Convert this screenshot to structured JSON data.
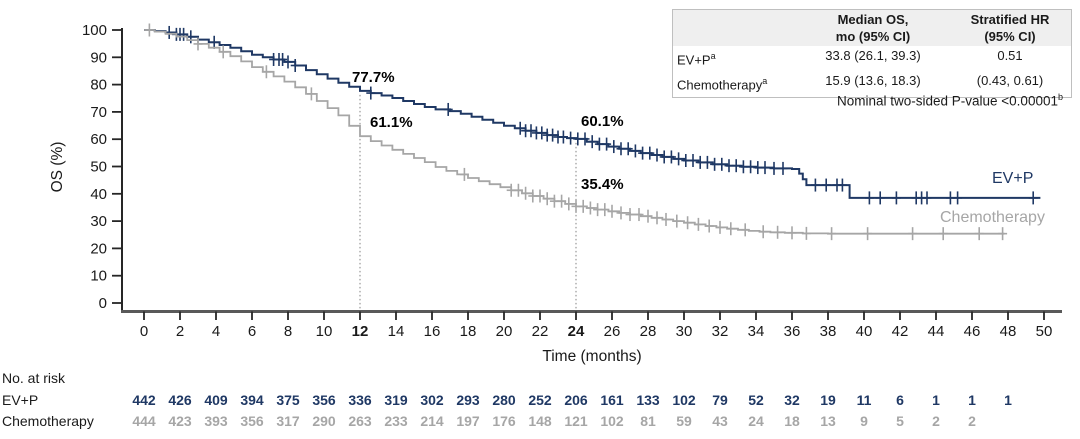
{
  "colors": {
    "evp": "#1f3864",
    "chemo": "#a6a6a6",
    "y_axis": "#262626",
    "x_axis": "#595959",
    "tick": "#262626",
    "dotted": "#808080",
    "text": "#1a1a1a",
    "table_border": "#bfbfbf",
    "table_header_bg": "#efefef"
  },
  "chart_data": {
    "type": "line",
    "subtype": "kaplan-meier-step",
    "title": "",
    "xlabel": "Time (months)",
    "ylabel": "OS (%)",
    "xlim": [
      0,
      50
    ],
    "ylim": [
      0,
      100
    ],
    "x_ticks": [
      0,
      2,
      4,
      6,
      8,
      10,
      12,
      14,
      16,
      18,
      20,
      22,
      24,
      26,
      28,
      30,
      32,
      34,
      36,
      38,
      40,
      42,
      44,
      46,
      48,
      50
    ],
    "bold_x_ticks": [
      12,
      24
    ],
    "y_ticks": [
      0,
      10,
      20,
      30,
      40,
      50,
      60,
      70,
      80,
      90,
      100
    ],
    "grid": false,
    "legend_position": "right-of-curves",
    "reference_lines": [
      {
        "x": 12,
        "top_pct": 77.7
      },
      {
        "x": 24,
        "top_pct": 60.1
      }
    ],
    "annotations": [
      {
        "text": "77.7%",
        "t": 12,
        "pct": 77.7,
        "series": "EV+P"
      },
      {
        "text": "61.1%",
        "t": 12,
        "pct": 61.1,
        "series": "Chemotherapy"
      },
      {
        "text": "60.1%",
        "t": 24,
        "pct": 60.1,
        "series": "EV+P"
      },
      {
        "text": "35.4%",
        "t": 24,
        "pct": 35.4,
        "series": "Chemotherapy"
      }
    ],
    "series": [
      {
        "name": "EV+P",
        "label": "EV+P",
        "color": "#1f3864",
        "points": [
          [
            0,
            100
          ],
          [
            0.6,
            99.6
          ],
          [
            1.2,
            99.1
          ],
          [
            1.8,
            98.4
          ],
          [
            2.4,
            97.5
          ],
          [
            3.0,
            96.5
          ],
          [
            3.6,
            95.5
          ],
          [
            4.2,
            94.5
          ],
          [
            4.8,
            93.5
          ],
          [
            5.4,
            92.2
          ],
          [
            6.0,
            90.9
          ],
          [
            6.6,
            90.0
          ],
          [
            7.2,
            89.2
          ],
          [
            7.8,
            88.3
          ],
          [
            8.4,
            87.0
          ],
          [
            9.0,
            85.3
          ],
          [
            9.6,
            83.8
          ],
          [
            10.2,
            82.2
          ],
          [
            10.8,
            80.7
          ],
          [
            11.4,
            79.2
          ],
          [
            12.0,
            77.7
          ],
          [
            12.6,
            76.9
          ],
          [
            13.2,
            76.0
          ],
          [
            13.8,
            75.1
          ],
          [
            14.4,
            74.0
          ],
          [
            15.0,
            72.9
          ],
          [
            15.6,
            71.8
          ],
          [
            16.2,
            70.9
          ],
          [
            17.0,
            70.3
          ],
          [
            17.6,
            69.3
          ],
          [
            18.2,
            68.2
          ],
          [
            18.8,
            67.1
          ],
          [
            19.4,
            66.0
          ],
          [
            20.0,
            64.9
          ],
          [
            20.6,
            64.0
          ],
          [
            21.2,
            63.1
          ],
          [
            21.8,
            62.3
          ],
          [
            22.4,
            61.5
          ],
          [
            23.0,
            60.8
          ],
          [
            23.5,
            60.4
          ],
          [
            24.0,
            60.1
          ],
          [
            24.6,
            59.1
          ],
          [
            25.2,
            58.2
          ],
          [
            25.8,
            57.3
          ],
          [
            26.4,
            56.5
          ],
          [
            27.0,
            55.7
          ],
          [
            27.6,
            54.9
          ],
          [
            28.2,
            54.2
          ],
          [
            28.8,
            53.5
          ],
          [
            29.4,
            52.8
          ],
          [
            30.0,
            52.2
          ],
          [
            30.8,
            51.5
          ],
          [
            31.6,
            50.8
          ],
          [
            32.4,
            50.3
          ],
          [
            33.2,
            49.9
          ],
          [
            34.0,
            49.6
          ],
          [
            35.0,
            49.3
          ],
          [
            36.0,
            49.1
          ],
          [
            36.4,
            47.4
          ],
          [
            36.6,
            45.3
          ],
          [
            36.8,
            43.2
          ],
          [
            39.2,
            38.5
          ],
          [
            49.8,
            38.5
          ]
        ],
        "censor_times": [
          1.4,
          1.8,
          2.0,
          2.2,
          2.6,
          3.9,
          7.2,
          7.5,
          7.7,
          8.0,
          8.4,
          12.6,
          16.9,
          20.9,
          21.2,
          21.5,
          21.8,
          22.1,
          22.4,
          22.7,
          23.0,
          23.3,
          23.7,
          24.1,
          24.5,
          24.9,
          25.3,
          25.7,
          26.1,
          26.5,
          26.9,
          27.3,
          27.7,
          28.1,
          28.5,
          28.9,
          29.3,
          29.7,
          30.1,
          30.5,
          30.9,
          31.3,
          31.7,
          32.1,
          32.5,
          32.9,
          33.3,
          33.7,
          34.1,
          34.5,
          35.0,
          35.5,
          37.3,
          37.9,
          38.5,
          38.8,
          40.3,
          40.9,
          41.8,
          42.9,
          43.2,
          43.5,
          44.8,
          45.2,
          49.4
        ]
      },
      {
        "name": "Chemotherapy",
        "label": "Chemotherapy",
        "color": "#a6a6a6",
        "points": [
          [
            0,
            100
          ],
          [
            0.6,
            99.4
          ],
          [
            1.2,
            98.6
          ],
          [
            1.8,
            97.6
          ],
          [
            2.4,
            96.3
          ],
          [
            3.0,
            94.9
          ],
          [
            3.6,
            93.5
          ],
          [
            4.2,
            92.0
          ],
          [
            4.8,
            90.4
          ],
          [
            5.4,
            88.5
          ],
          [
            6.0,
            86.4
          ],
          [
            6.6,
            84.7
          ],
          [
            7.2,
            83.0
          ],
          [
            7.8,
            81.1
          ],
          [
            8.4,
            79.0
          ],
          [
            9.0,
            76.6
          ],
          [
            9.6,
            74.0
          ],
          [
            10.2,
            71.4
          ],
          [
            10.8,
            68.7
          ],
          [
            11.4,
            64.9
          ],
          [
            12.0,
            61.1
          ],
          [
            12.6,
            59.3
          ],
          [
            13.2,
            57.7
          ],
          [
            13.8,
            56.1
          ],
          [
            14.4,
            54.6
          ],
          [
            15.0,
            53.1
          ],
          [
            15.6,
            51.6
          ],
          [
            16.2,
            49.8
          ],
          [
            16.8,
            48.4
          ],
          [
            17.4,
            47.1
          ],
          [
            18.0,
            45.8
          ],
          [
            18.6,
            44.6
          ],
          [
            19.2,
            43.5
          ],
          [
            19.8,
            42.4
          ],
          [
            20.4,
            41.3
          ],
          [
            21.0,
            40.2
          ],
          [
            21.6,
            39.2
          ],
          [
            22.2,
            38.2
          ],
          [
            22.8,
            37.3
          ],
          [
            23.4,
            36.3
          ],
          [
            24.0,
            35.4
          ],
          [
            24.6,
            34.8
          ],
          [
            25.2,
            34.2
          ],
          [
            25.8,
            33.6
          ],
          [
            26.4,
            33.0
          ],
          [
            27.0,
            32.4
          ],
          [
            27.6,
            31.8
          ],
          [
            28.2,
            31.2
          ],
          [
            28.8,
            30.6
          ],
          [
            29.4,
            30.0
          ],
          [
            30.0,
            29.4
          ],
          [
            30.6,
            28.8
          ],
          [
            31.2,
            28.2
          ],
          [
            31.8,
            27.7
          ],
          [
            32.4,
            27.2
          ],
          [
            33.0,
            26.8
          ],
          [
            33.6,
            26.4
          ],
          [
            34.2,
            26.1
          ],
          [
            34.8,
            25.9
          ],
          [
            35.6,
            25.7
          ],
          [
            36.6,
            25.5
          ],
          [
            38.0,
            25.4
          ],
          [
            47.8,
            25.4
          ]
        ],
        "censor_times": [
          0.3,
          3.0,
          4.4,
          6.8,
          9.3,
          17.8,
          20.4,
          20.8,
          21.2,
          21.6,
          22.0,
          22.4,
          22.8,
          23.2,
          23.6,
          24.0,
          24.4,
          24.8,
          25.2,
          25.6,
          26.0,
          26.5,
          27.0,
          27.5,
          28.0,
          28.5,
          29.0,
          29.6,
          30.2,
          30.8,
          31.4,
          32.0,
          32.6,
          33.4,
          34.4,
          35.2,
          36.0,
          36.8,
          38.2,
          40.2,
          42.7,
          44.4,
          46.4,
          47.7
        ]
      }
    ]
  },
  "stats_table": {
    "header": {
      "median_line1": "Median OS,",
      "median_line2": "mo (95% CI)",
      "hr_line1": "Stratified HR",
      "hr_line2": "(95% CI)"
    },
    "rows": [
      {
        "label": "EV+P",
        "sup": "a",
        "median": "33.8 (26.1, 39.3)",
        "hr": "0.51"
      },
      {
        "label": "Chemotherapy",
        "sup": "a",
        "median": "15.9 (13.6, 18.3)",
        "hr": "(0.43, 0.61)"
      }
    ]
  },
  "p_note": {
    "text": "Nominal two-sided P-value <0.00001",
    "sup": "b"
  },
  "risk_table": {
    "title": "No. at risk",
    "times": [
      0,
      2,
      4,
      6,
      8,
      10,
      12,
      14,
      16,
      18,
      20,
      22,
      24,
      26,
      28,
      30,
      32,
      34,
      36,
      38,
      40,
      42,
      44,
      46,
      48
    ],
    "rows": [
      {
        "label": "EV+P",
        "color": "#1f3864",
        "values": [
          442,
          426,
          409,
          394,
          375,
          356,
          336,
          319,
          302,
          293,
          280,
          252,
          206,
          161,
          133,
          102,
          79,
          52,
          32,
          19,
          11,
          6,
          1,
          1,
          1
        ]
      },
      {
        "label": "Chemotherapy",
        "color": "#a6a6a6",
        "values": [
          444,
          423,
          393,
          356,
          317,
          290,
          263,
          233,
          214,
          197,
          176,
          148,
          121,
          102,
          81,
          59,
          43,
          24,
          18,
          13,
          9,
          5,
          2,
          2
        ]
      }
    ]
  }
}
